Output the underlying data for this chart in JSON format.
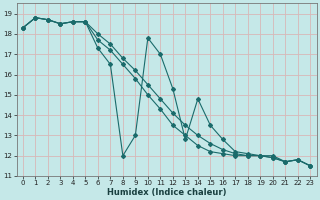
{
  "xlabel": "Humidex (Indice chaleur)",
  "ylabel": "",
  "bg_color": "#c5e8e8",
  "grid_color": "#d8b8b8",
  "line_color": "#1a6b6b",
  "marker_color": "#1a6b6b",
  "xlim": [
    -0.5,
    23.5
  ],
  "ylim": [
    11,
    19.5
  ],
  "yticks": [
    11,
    12,
    13,
    14,
    15,
    16,
    17,
    18,
    19
  ],
  "xticks": [
    0,
    1,
    2,
    3,
    4,
    5,
    6,
    7,
    8,
    9,
    10,
    11,
    12,
    13,
    14,
    15,
    16,
    17,
    18,
    19,
    20,
    21,
    22,
    23
  ],
  "line1_x": [
    0,
    1,
    2,
    3,
    4,
    5,
    6,
    7,
    8,
    9,
    10,
    11,
    12,
    13,
    14,
    15,
    16,
    17,
    18,
    19,
    20,
    21,
    22,
    23
  ],
  "line1_y": [
    18.3,
    18.8,
    18.7,
    18.5,
    18.6,
    18.6,
    17.3,
    16.5,
    12.0,
    13.0,
    17.8,
    17.0,
    15.3,
    12.8,
    14.8,
    13.5,
    12.8,
    12.2,
    12.1,
    12.0,
    12.0,
    11.7,
    11.8,
    11.5
  ],
  "line2_x": [
    0,
    1,
    2,
    3,
    4,
    5,
    6,
    7,
    8,
    9,
    10,
    11,
    12,
    13,
    14,
    15,
    16,
    17,
    18,
    19,
    20,
    21,
    22,
    23
  ],
  "line2_y": [
    18.3,
    18.8,
    18.7,
    18.5,
    18.6,
    18.6,
    17.7,
    17.2,
    16.5,
    15.8,
    15.0,
    14.3,
    13.5,
    13.0,
    12.5,
    12.2,
    12.1,
    12.0,
    12.0,
    12.0,
    11.9,
    11.7,
    11.8,
    11.5
  ],
  "line3_x": [
    0,
    1,
    2,
    3,
    4,
    5,
    6,
    7,
    8,
    9,
    10,
    11,
    12,
    13,
    14,
    15,
    16,
    17,
    18,
    19,
    20,
    21,
    22,
    23
  ],
  "line3_y": [
    18.3,
    18.8,
    18.7,
    18.5,
    18.6,
    18.6,
    18.0,
    17.5,
    16.8,
    16.2,
    15.5,
    14.8,
    14.1,
    13.5,
    13.0,
    12.6,
    12.3,
    12.1,
    12.0,
    12.0,
    11.9,
    11.7,
    11.8,
    11.5
  ]
}
